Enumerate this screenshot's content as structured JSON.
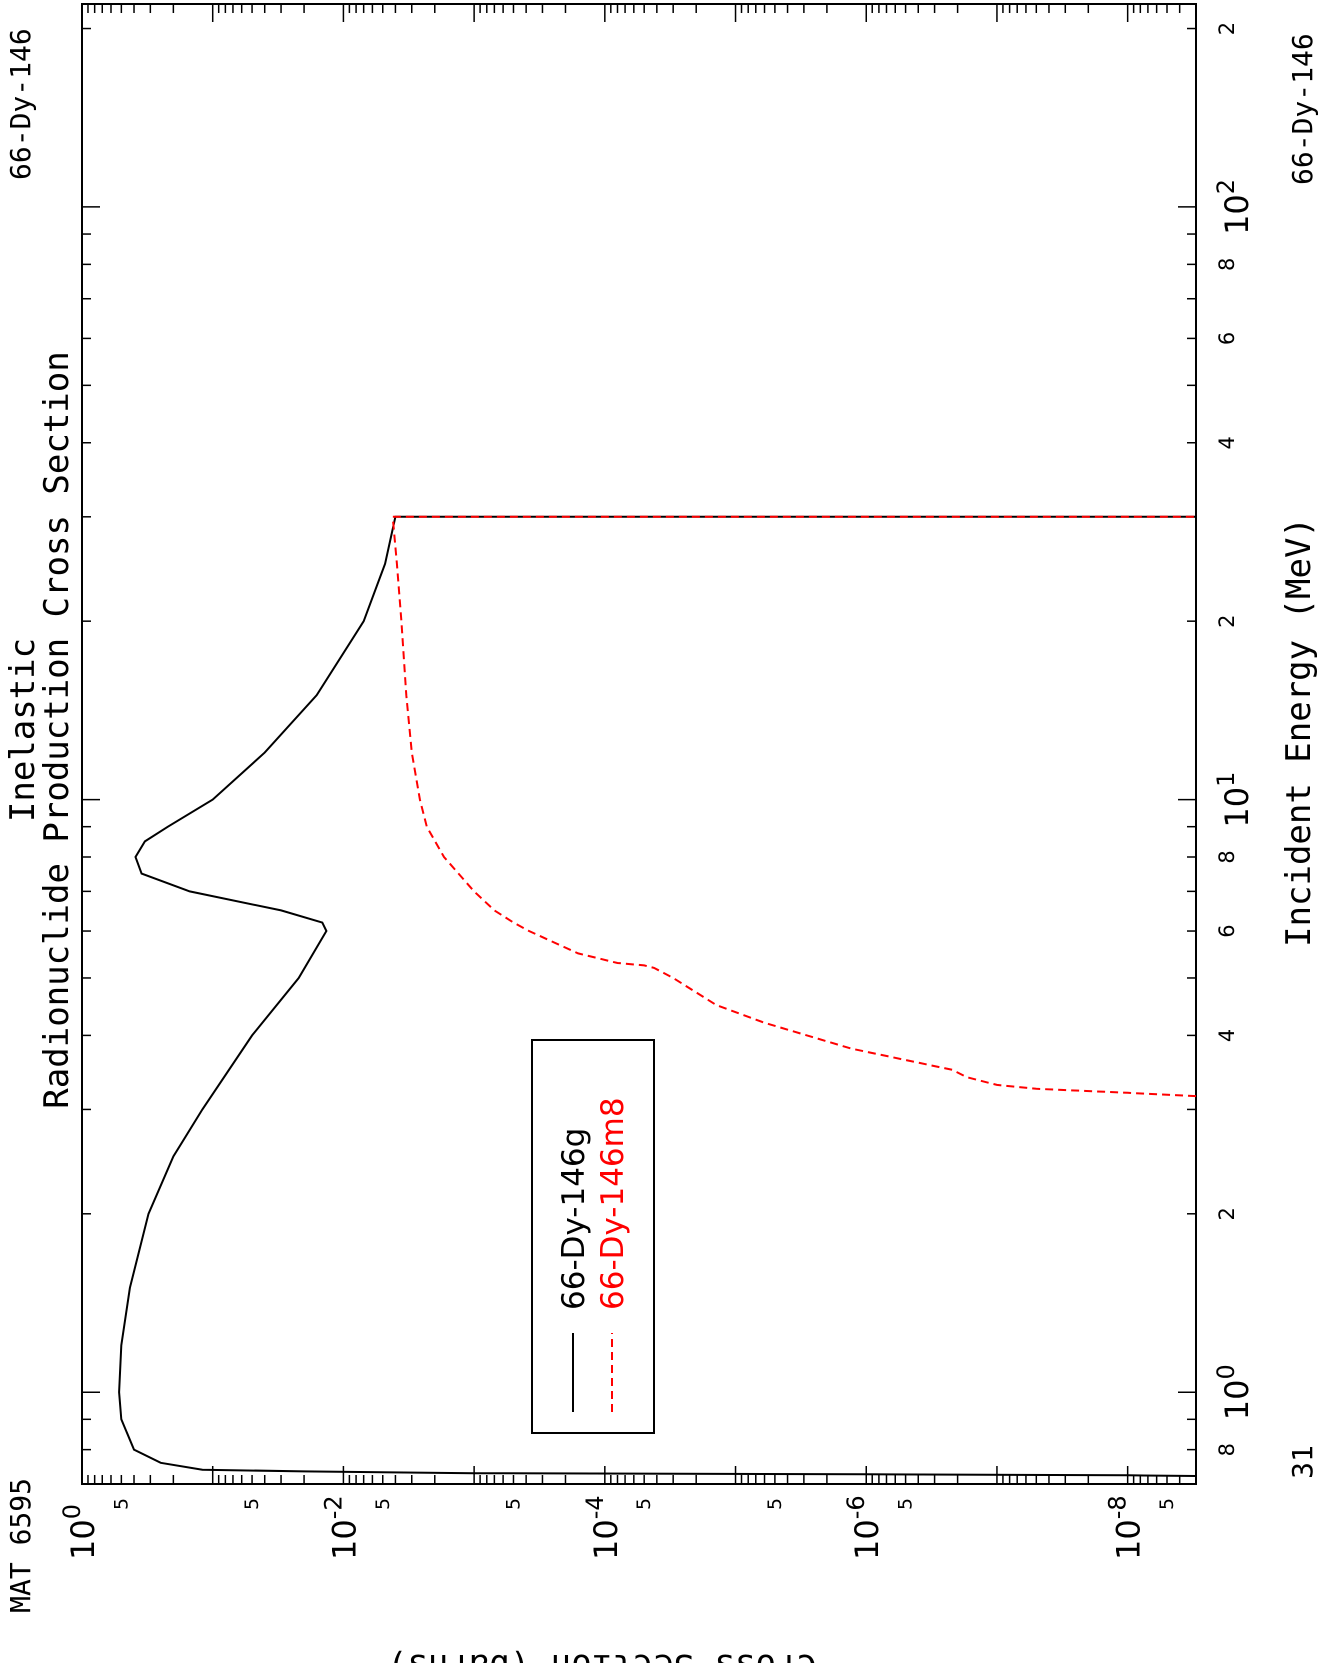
{
  "header": {
    "title_line1": "Inelastic",
    "title_line2": "Radionuclide Production Cross Section",
    "mat_label": "MAT 6595",
    "target_label_top": "66-Dy-146",
    "target_label_bottom": "66-Dy-146",
    "mt_label": "31"
  },
  "colors": {
    "series_g": "#000000",
    "series_m8": "#ff0000",
    "frame": "#000000"
  },
  "chart_data": {
    "type": "line",
    "title": "Inelastic Radionuclide Production Cross Section",
    "xlabel": "Incident Energy (MeV)",
    "ylabel": "Cross Section (barns)",
    "x_scale": "log",
    "y_scale": "log",
    "xlim": [
      0.7,
      220
    ],
    "ylim": [
      3e-09,
      1.0
    ],
    "grid": false,
    "legend_position": "inside-right",
    "x_ticks": [
      {
        "value": 1,
        "base": "10",
        "exp": "0"
      },
      {
        "value": 10,
        "base": "10",
        "exp": "1"
      },
      {
        "value": 100,
        "base": "10",
        "exp": "2"
      }
    ],
    "x_minor_labels": [
      {
        "value": 0.8,
        "label": "8"
      },
      {
        "value": 2,
        "label": "2"
      },
      {
        "value": 4,
        "label": "4"
      },
      {
        "value": 6,
        "label": "6"
      },
      {
        "value": 8,
        "label": "8"
      },
      {
        "value": 20,
        "label": "2"
      },
      {
        "value": 40,
        "label": "4"
      },
      {
        "value": 60,
        "label": "6"
      },
      {
        "value": 80,
        "label": "8"
      },
      {
        "value": 200,
        "label": "2"
      }
    ],
    "y_ticks": [
      {
        "value": 1,
        "base": "10",
        "exp": "0"
      },
      {
        "value": 0.01,
        "base": "10",
        "exp": "-2"
      },
      {
        "value": 0.0001,
        "base": "10",
        "exp": "-4"
      },
      {
        "value": 1e-06,
        "base": "10",
        "exp": "-6"
      },
      {
        "value": 1e-08,
        "base": "10",
        "exp": "-8"
      }
    ],
    "y_minor_labels": [
      {
        "value": 0.5,
        "label": "5"
      },
      {
        "value": 0.005,
        "label": "5"
      },
      {
        "value": 5e-05,
        "label": "5"
      },
      {
        "value": 5e-07,
        "label": "5"
      },
      {
        "value": 5e-09,
        "label": "5"
      },
      {
        "value": 0.05,
        "label": "5"
      },
      {
        "value": 0.0005,
        "label": "5"
      },
      {
        "value": 5e-06,
        "label": "5"
      }
    ],
    "series": [
      {
        "name": "66-Dy-146g",
        "style": "solid",
        "x": [
          0.722,
          0.724,
          0.727,
          0.73,
          0.735,
          0.74,
          0.76,
          0.8,
          0.9,
          1.0,
          1.2,
          1.5,
          2.0,
          2.5,
          3.0,
          4.0,
          5.0,
          6.0,
          6.2,
          6.5,
          7.0,
          7.5,
          8.0,
          8.5,
          9.0,
          10.0,
          12.0,
          15.0,
          20.0,
          25.0,
          30.0,
          30.0
        ],
        "y": [
          3e-09,
          1e-08,
          1e-06,
          0.001,
          0.02,
          0.12,
          0.25,
          0.4,
          0.5,
          0.52,
          0.5,
          0.43,
          0.31,
          0.2,
          0.12,
          0.05,
          0.022,
          0.0135,
          0.0145,
          0.03,
          0.15,
          0.35,
          0.39,
          0.33,
          0.22,
          0.1,
          0.04,
          0.016,
          0.007,
          0.0048,
          0.004,
          3e-09
        ]
      },
      {
        "name": "66-Dy-146m8",
        "style": "dashed",
        "x": [
          3.16,
          3.2,
          3.25,
          3.3,
          3.4,
          3.5,
          3.8,
          4.2,
          4.5,
          5.0,
          5.2,
          5.25,
          5.3,
          5.5,
          6.0,
          6.2,
          6.5,
          7.0,
          8.0,
          9.0,
          10.0,
          12.0,
          15.0,
          20.0,
          25.0,
          30.0,
          30.0
        ],
        "y": [
          3e-09,
          1e-08,
          5e-08,
          1e-07,
          1.7e-07,
          2.2e-07,
          1.3e-06,
          6e-06,
          1.4e-05,
          3e-05,
          4.2e-05,
          5e-05,
          8e-05,
          0.00016,
          0.00038,
          0.0005,
          0.0007,
          0.001,
          0.0017,
          0.0023,
          0.0026,
          0.003,
          0.0033,
          0.0036,
          0.0039,
          0.0042,
          3e-09
        ]
      }
    ]
  }
}
